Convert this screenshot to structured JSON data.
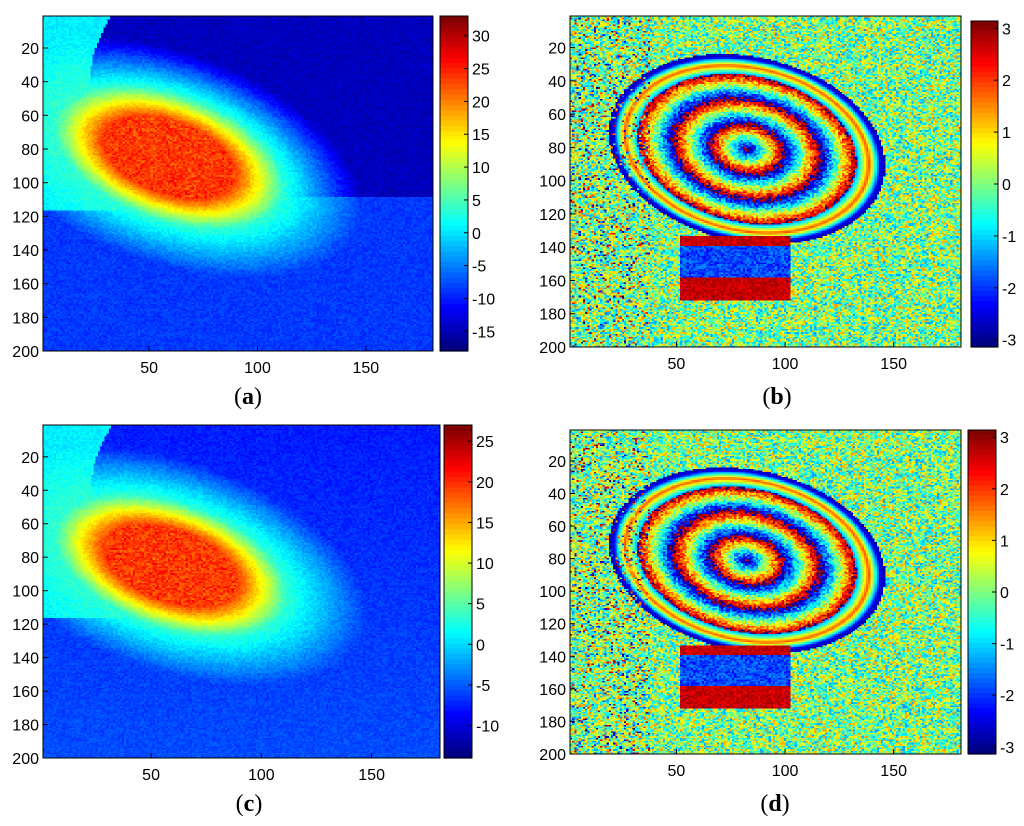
{
  "chart_data": [
    {
      "type": "heatmap",
      "caption": "(a)",
      "xticks": [
        "50",
        "100",
        "150"
      ],
      "yticks": [
        "20",
        "40",
        "60",
        "80",
        "100",
        "120",
        "140",
        "160",
        "180",
        "200"
      ],
      "xlim": [
        1,
        181
      ],
      "ylim": [
        1,
        200
      ],
      "colorbar": {
        "min": -18,
        "max": 33,
        "ticks": [
          "30",
          "25",
          "20",
          "15",
          "10",
          "5",
          "0",
          "-5",
          "-10",
          "-15"
        ]
      }
    },
    {
      "type": "heatmap",
      "caption": "(b)",
      "xticks": [
        "50",
        "100",
        "150"
      ],
      "yticks": [
        "20",
        "40",
        "60",
        "80",
        "100",
        "120",
        "140",
        "160",
        "180",
        "200"
      ],
      "xlim": [
        1,
        181
      ],
      "ylim": [
        1,
        200
      ],
      "colorbar": {
        "min": -3.14,
        "max": 3.14,
        "ticks": [
          "3",
          "2",
          "1",
          "0",
          "-1",
          "-2",
          "-3"
        ]
      }
    },
    {
      "type": "heatmap",
      "caption": "(c)",
      "xticks": [
        "50",
        "100",
        "150"
      ],
      "yticks": [
        "20",
        "40",
        "60",
        "80",
        "100",
        "120",
        "140",
        "160",
        "180",
        "200"
      ],
      "xlim": [
        1,
        181
      ],
      "ylim": [
        1,
        200
      ],
      "colorbar": {
        "min": -14,
        "max": 27,
        "ticks": [
          "25",
          "20",
          "15",
          "10",
          "5",
          "0",
          "-5",
          "-10"
        ]
      }
    },
    {
      "type": "heatmap",
      "caption": "(d)",
      "xticks": [
        "50",
        "100",
        "150"
      ],
      "yticks": [
        "20",
        "40",
        "60",
        "80",
        "100",
        "120",
        "140",
        "160",
        "180",
        "200"
      ],
      "xlim": [
        1,
        181
      ],
      "ylim": [
        1,
        200
      ],
      "colorbar": {
        "min": -3.14,
        "max": 3.14,
        "ticks": [
          "3",
          "2",
          "1",
          "0",
          "-1",
          "-2",
          "-3"
        ]
      }
    }
  ]
}
